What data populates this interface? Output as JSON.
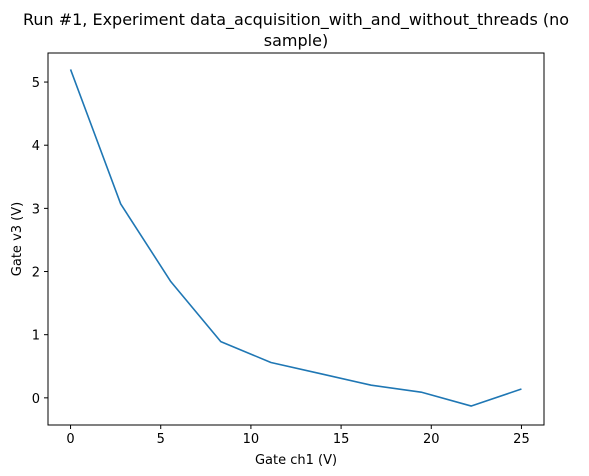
{
  "chart_data": {
    "type": "line",
    "title_lines": [
      "Run #1, Experiment data_acquisition_with_and_without_threads (no",
      "sample)"
    ],
    "xlabel": "Gate ch1 (V)",
    "ylabel": "Gate v3 (V)",
    "xlim": [
      -1.25,
      26.25
    ],
    "ylim": [
      -0.43,
      5.46
    ],
    "xticks": [
      0,
      5,
      10,
      15,
      20,
      25
    ],
    "yticks": [
      0,
      1,
      2,
      3,
      4,
      5
    ],
    "grid": false,
    "series": [
      {
        "color": "#1f77b4",
        "x": [
          0,
          2.78,
          5.56,
          8.33,
          11.11,
          13.89,
          16.67,
          19.44,
          22.22,
          25
        ],
        "y": [
          5.2,
          3.07,
          1.84,
          0.89,
          0.56,
          0.38,
          0.2,
          0.09,
          -0.13,
          0.14
        ]
      }
    ]
  }
}
